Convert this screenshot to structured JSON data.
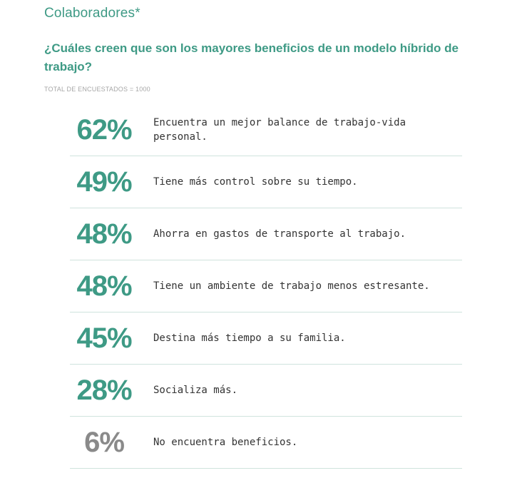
{
  "header": {
    "title": "Colaboradores*",
    "question": "¿Cuáles creen que son los mayores beneficios de un modelo híbrido de trabajo?",
    "total": "TOTAL DE ENCUESTADOS = 1000"
  },
  "colors": {
    "accent": "#3e9a85",
    "muted": "#8a8a8a",
    "divider": "#cfe3dd"
  },
  "chart_data": {
    "type": "table",
    "title": "¿Cuáles creen que son los mayores beneficios de un modelo híbrido de trabajo?",
    "rows": [
      {
        "value": 62,
        "display": "62%",
        "label": "Encuentra un mejor balance de trabajo-vida personal."
      },
      {
        "value": 49,
        "display": "49%",
        "label": "Tiene más control sobre su tiempo."
      },
      {
        "value": 48,
        "display": "48%",
        "label": "Ahorra en gastos de transporte al trabajo."
      },
      {
        "value": 48,
        "display": "48%",
        "label": "Tiene un ambiente de trabajo menos estresante."
      },
      {
        "value": 45,
        "display": "45%",
        "label": "Destina más tiempo a su familia."
      },
      {
        "value": 28,
        "display": "28%",
        "label": "Socializa más."
      },
      {
        "value": 6,
        "display": "6%",
        "label": "No encuentra beneficios."
      }
    ]
  }
}
